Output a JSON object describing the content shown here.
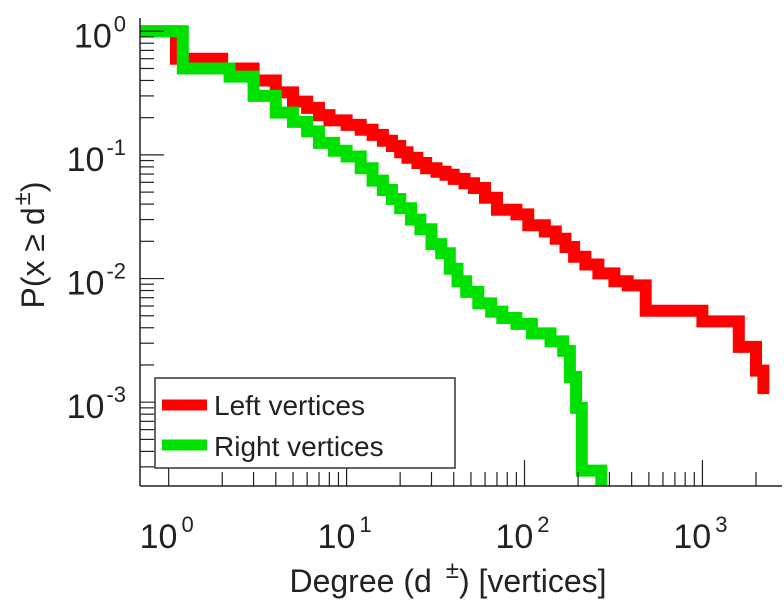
{
  "colors": {
    "left": "#ff0000",
    "right": "#00e000",
    "axis": "#222222"
  },
  "chart_data": {
    "type": "line",
    "subtype": "log-log complementary cumulative distribution (step)",
    "title": "",
    "xlabel_parts": {
      "pre": "Degree (d",
      "sup": "±",
      "post": ") [vertices]"
    },
    "ylabel_parts": {
      "pre": "P(x ≥ d",
      "sup": "±",
      "post": ")"
    },
    "xscale": "log",
    "yscale": "log",
    "xlim": [
      0.69,
      2800
    ],
    "ylim": [
      0.00021,
      1.28
    ],
    "xticks": [
      {
        "base": "10",
        "exp": "0",
        "value": 1
      },
      {
        "base": "10",
        "exp": "1",
        "value": 10
      },
      {
        "base": "10",
        "exp": "2",
        "value": 100
      },
      {
        "base": "10",
        "exp": "3",
        "value": 1000
      }
    ],
    "yticks": [
      {
        "base": "10",
        "exp": "0",
        "value": 1
      },
      {
        "base": "10",
        "exp": "-1",
        "value": 0.1
      },
      {
        "base": "10",
        "exp": "-2",
        "value": 0.01
      },
      {
        "base": "10",
        "exp": "-3",
        "value": 0.001
      }
    ],
    "legend_position": "bottom-left",
    "series": [
      {
        "name": "Left vertices",
        "color": "#ff0000",
        "points": [
          [
            1,
            1.0
          ],
          [
            1.1,
            0.6
          ],
          [
            2,
            0.5
          ],
          [
            3,
            0.4
          ],
          [
            4,
            0.32
          ],
          [
            5,
            0.27
          ],
          [
            6,
            0.24
          ],
          [
            7,
            0.21
          ],
          [
            8,
            0.19
          ],
          [
            10,
            0.175
          ],
          [
            12,
            0.16
          ],
          [
            14,
            0.145
          ],
          [
            16,
            0.13
          ],
          [
            18,
            0.118
          ],
          [
            20,
            0.105
          ],
          [
            22,
            0.095
          ],
          [
            25,
            0.086
          ],
          [
            28,
            0.078
          ],
          [
            32,
            0.073
          ],
          [
            36,
            0.069
          ],
          [
            40,
            0.064
          ],
          [
            46,
            0.059
          ],
          [
            52,
            0.054
          ],
          [
            60,
            0.045
          ],
          [
            70,
            0.036
          ],
          [
            90,
            0.033
          ],
          [
            105,
            0.027
          ],
          [
            130,
            0.024
          ],
          [
            150,
            0.021
          ],
          [
            170,
            0.018
          ],
          [
            190,
            0.015
          ],
          [
            220,
            0.013
          ],
          [
            260,
            0.011
          ],
          [
            320,
            0.0095
          ],
          [
            380,
            0.0088
          ],
          [
            480,
            0.0055
          ],
          [
            1000,
            0.0045
          ],
          [
            1600,
            0.0028
          ],
          [
            2000,
            0.0018
          ],
          [
            2200,
            0.0013
          ]
        ]
      },
      {
        "name": "Right vertices",
        "color": "#00e000",
        "points": [
          [
            1,
            1.0
          ],
          [
            1.2,
            0.5
          ],
          [
            2.2,
            0.43
          ],
          [
            3,
            0.3
          ],
          [
            4,
            0.22
          ],
          [
            5,
            0.185
          ],
          [
            6,
            0.155
          ],
          [
            7,
            0.125
          ],
          [
            8.5,
            0.108
          ],
          [
            10,
            0.097
          ],
          [
            12,
            0.078
          ],
          [
            14,
            0.062
          ],
          [
            16,
            0.052
          ],
          [
            18,
            0.044
          ],
          [
            20,
            0.037
          ],
          [
            23,
            0.03
          ],
          [
            26,
            0.025
          ],
          [
            30,
            0.019
          ],
          [
            34,
            0.016
          ],
          [
            38,
            0.012
          ],
          [
            42,
            0.0095
          ],
          [
            47,
            0.0078
          ],
          [
            55,
            0.0063
          ],
          [
            65,
            0.0054
          ],
          [
            75,
            0.0048
          ],
          [
            90,
            0.0043
          ],
          [
            110,
            0.0036
          ],
          [
            140,
            0.0031
          ],
          [
            165,
            0.0026
          ],
          [
            180,
            0.0016
          ],
          [
            195,
            0.0009
          ],
          [
            210,
            0.00028
          ],
          [
            270,
            0.00021
          ]
        ]
      }
    ]
  }
}
